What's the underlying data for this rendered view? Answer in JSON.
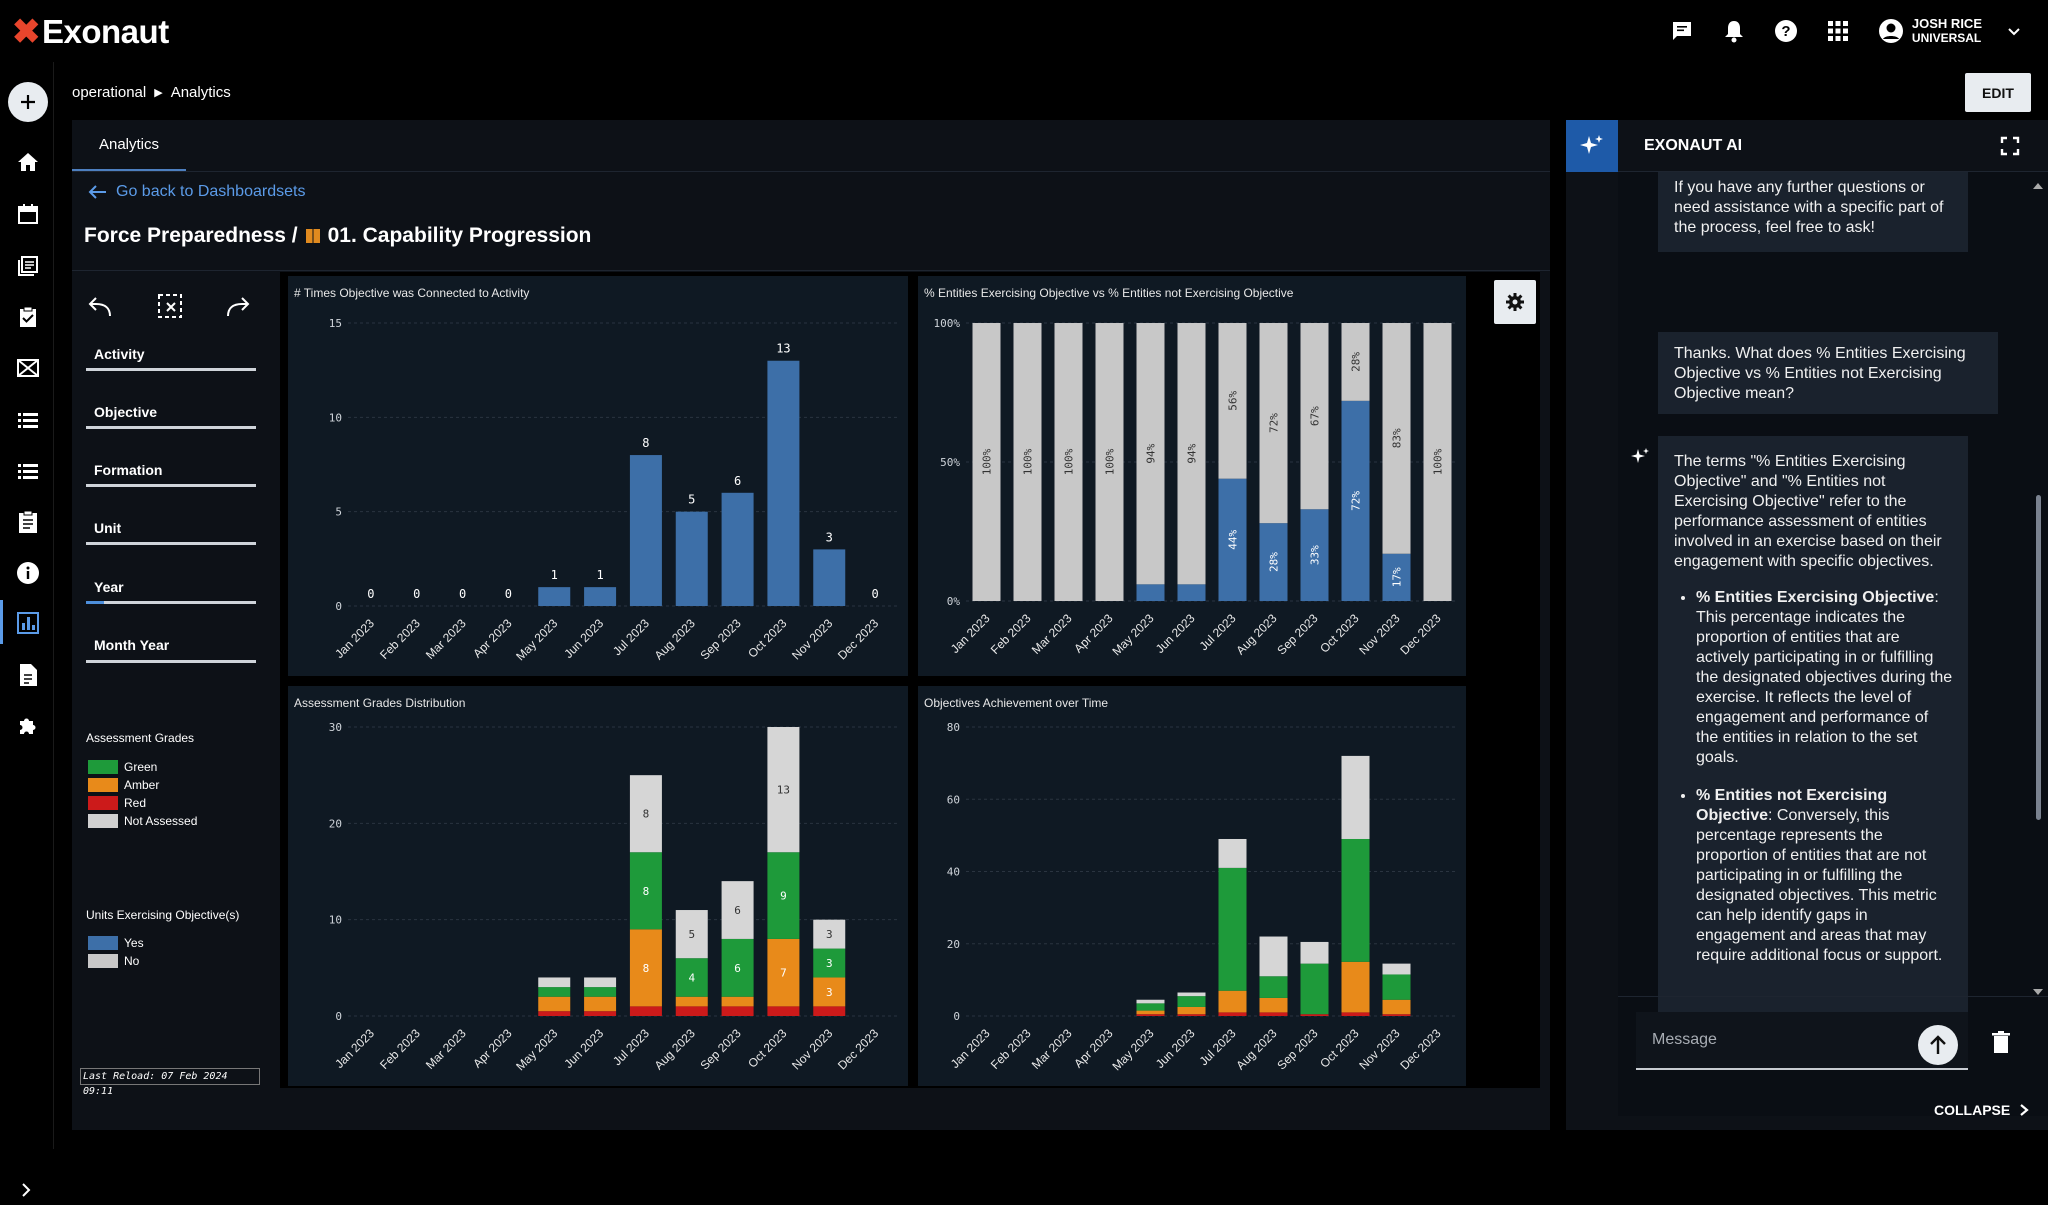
{
  "app": {
    "logo_text": "Exonaut"
  },
  "header": {
    "icons": [
      "chat-icon",
      "bell-icon",
      "help-icon",
      "apps-icon"
    ],
    "user_name": "JOSH RICE",
    "user_org": "UNIVERSAL"
  },
  "sidebar": {
    "items": [
      "add-icon",
      "home-icon",
      "calendar-icon",
      "library-icon",
      "assignment-icon",
      "mail-icon",
      "list-icon",
      "list-alt-icon",
      "clipboard-icon",
      "info-icon",
      "analytics-icon",
      "document-icon",
      "extension-icon"
    ]
  },
  "breadcrumb": {
    "root": "operational",
    "current": "Analytics"
  },
  "edit_label": "EDIT",
  "tab_label": "Analytics",
  "back_label": "Go back to Dashboardsets",
  "dashboard": {
    "title_prefix": "Force Preparedness /",
    "title": "01. Capability Progression"
  },
  "filters": {
    "items": [
      "Activity",
      "Objective",
      "Formation",
      "Unit",
      "Year",
      "Month Year"
    ],
    "legend1_title": "Assessment Grades",
    "legend1_items": [
      "Green",
      "Amber",
      "Red",
      "Not Assessed"
    ],
    "legend2_title": "Units Exercising Objective(s)",
    "legend2_items": [
      "Yes",
      "No"
    ],
    "last_reload": "Last Reload: 07 Feb 2024 09:11"
  },
  "colors": {
    "blue": "#3d6fa8",
    "grey": "#c8c8c8",
    "green": "#1e9a3a",
    "amber": "#e88a1a",
    "red": "#cc1a1a",
    "accent": "#1e5aa8"
  },
  "chart_data": [
    {
      "type": "bar",
      "title": "# Times Objective was Connected to Activity",
      "categories": [
        "Jan 2023",
        "Feb 2023",
        "Mar 2023",
        "Apr 2023",
        "May 2023",
        "Jun 2023",
        "Jul 2023",
        "Aug 2023",
        "Sep 2023",
        "Oct 2023",
        "Nov 2023",
        "Dec 2023"
      ],
      "values": [
        0,
        0,
        0,
        0,
        1,
        1,
        8,
        5,
        6,
        13,
        3,
        0
      ],
      "ylim": [
        0,
        15
      ],
      "yticks": [
        0,
        5,
        10,
        15
      ]
    },
    {
      "type": "bar",
      "stacked": true,
      "title": "% Entities Exercising Objective vs % Entities not Exercising Objective",
      "categories": [
        "Jan 2023",
        "Feb 2023",
        "Mar 2023",
        "Apr 2023",
        "May 2023",
        "Jun 2023",
        "Jul 2023",
        "Aug 2023",
        "Sep 2023",
        "Oct 2023",
        "Nov 2023",
        "Dec 2023"
      ],
      "series": [
        {
          "name": "Yes",
          "values": [
            0,
            0,
            0,
            0,
            6,
            6,
            44,
            28,
            33,
            72,
            17,
            0
          ],
          "labels": [
            "",
            "",
            "",
            "",
            "",
            "",
            "44%",
            "28%",
            "33%",
            "72%",
            "17%",
            ""
          ]
        },
        {
          "name": "No",
          "values": [
            100,
            100,
            100,
            100,
            94,
            94,
            56,
            72,
            67,
            28,
            83,
            100
          ],
          "labels": [
            "100%",
            "100%",
            "100%",
            "100%",
            "94%",
            "94%",
            "56%",
            "72%",
            "67%",
            "28%",
            "83%",
            "100%"
          ]
        }
      ],
      "ylim": [
        0,
        100
      ],
      "yticks": [
        "0%",
        "50%",
        "100%"
      ]
    },
    {
      "type": "bar",
      "stacked": true,
      "title": "Assessment Grades Distribution",
      "categories": [
        "Jan 2023",
        "Feb 2023",
        "Mar 2023",
        "Apr 2023",
        "May 2023",
        "Jun 2023",
        "Jul 2023",
        "Aug 2023",
        "Sep 2023",
        "Oct 2023",
        "Nov 2023",
        "Dec 2023"
      ],
      "series": [
        {
          "name": "Red",
          "values": [
            0,
            0,
            0,
            0,
            0.5,
            0.5,
            1,
            1,
            1,
            1,
            1,
            0
          ]
        },
        {
          "name": "Amber",
          "values": [
            0,
            0,
            0,
            0,
            1.5,
            1.5,
            8,
            1,
            1,
            7,
            3,
            0
          ]
        },
        {
          "name": "Green",
          "values": [
            0,
            0,
            0,
            0,
            1,
            1,
            8,
            4,
            6,
            9,
            3,
            0
          ]
        },
        {
          "name": "Not Assessed",
          "values": [
            0,
            0,
            0,
            0,
            1,
            1,
            8,
            5,
            6,
            13,
            3,
            0
          ]
        }
      ],
      "labels": {
        "Amber": [
          "",
          "",
          "",
          "",
          "",
          "",
          "8",
          "",
          "",
          "7",
          "3",
          ""
        ],
        "Green": [
          "",
          "",
          "",
          "",
          "",
          "",
          "8",
          "4",
          "6",
          "9",
          "3",
          ""
        ],
        "Not Assessed": [
          "",
          "",
          "",
          "",
          "",
          "",
          "8",
          "5",
          "6",
          "13",
          "3",
          ""
        ]
      },
      "ylim": [
        0,
        30
      ],
      "yticks": [
        0,
        10,
        20,
        30
      ]
    },
    {
      "type": "bar",
      "stacked": true,
      "title": "Objectives Achievement over Time",
      "categories": [
        "Jan 2023",
        "Feb 2023",
        "Mar 2023",
        "Apr 2023",
        "May 2023",
        "Jun 2023",
        "Jul 2023",
        "Aug 2023",
        "Sep 2023",
        "Oct 2023",
        "Nov 2023",
        "Dec 2023"
      ],
      "series": [
        {
          "name": "Red",
          "values": [
            0,
            0,
            0,
            0,
            0.5,
            0.5,
            1,
            1,
            0.5,
            1,
            0.5,
            0
          ]
        },
        {
          "name": "Amber",
          "values": [
            0,
            0,
            0,
            0,
            1,
            2,
            6,
            4,
            0,
            14,
            4,
            0
          ]
        },
        {
          "name": "Green",
          "values": [
            0,
            0,
            0,
            0,
            2,
            3,
            34,
            6,
            14,
            34,
            7,
            0
          ]
        },
        {
          "name": "Not Assessed",
          "values": [
            0,
            0,
            0,
            0,
            1,
            1,
            8,
            11,
            6,
            23,
            3,
            0
          ]
        }
      ],
      "ylim": [
        0,
        80
      ],
      "yticks": [
        0,
        20,
        40,
        60,
        80
      ]
    }
  ],
  "ai": {
    "title": "EXONAUT AI",
    "msg1": "If you have any further questions or need assistance with a specific part of the process, feel free to ask!",
    "msg2": "Thanks. What does % Entities Exercising Objective vs % Entities not Exercising Objective mean?",
    "msg3_intro": "The terms \"% Entities Exercising Objective\" and \"% Entities not Exercising Objective\" refer to the performance assessment of entities involved in an exercise based on their engagement with specific objectives.",
    "bullet1_title": "% Entities Exercising Objective",
    "bullet1_text": ": This percentage indicates the proportion of entities that are actively participating in or fulfilling the designated objectives during the exercise. It reflects the level of engagement and performance of the entities in relation to the set goals.",
    "bullet2_title": "% Entities not Exercising Objective",
    "bullet2_text": ": Conversely, this percentage represents the proportion of entities that are not participating in or fulfilling the designated objectives. This metric can help identify gaps in engagement and areas that may require additional focus or support.",
    "input_placeholder": "Message",
    "collapse_label": "COLLAPSE"
  }
}
